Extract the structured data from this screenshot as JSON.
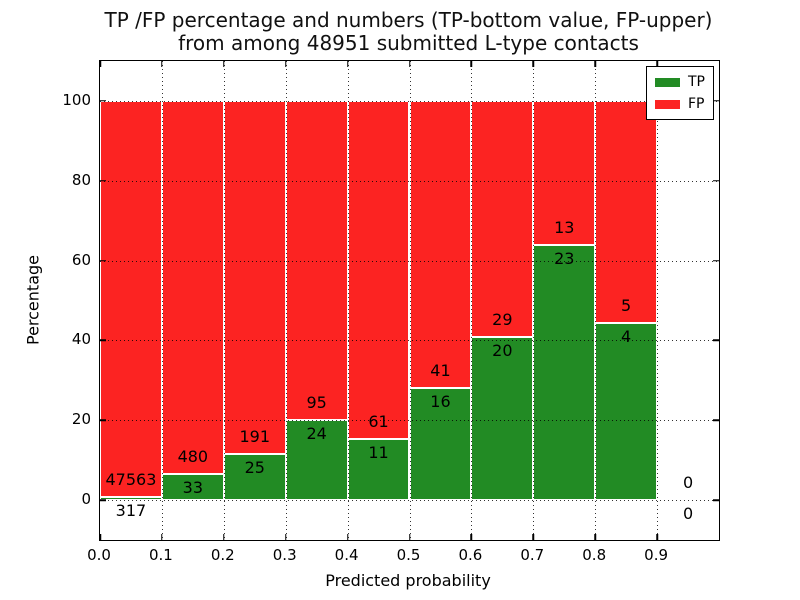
{
  "chart_data": {
    "type": "bar",
    "stacked": true,
    "title_line1": "TP /FP percentage and numbers (TP-bottom value, FP-upper)",
    "title_line2": "from among 48951 submitted L-type contacts",
    "xlabel": "Predicted probability",
    "ylabel": "Percentage",
    "xlim": [
      0.0,
      1.0
    ],
    "ylim": [
      -10,
      110
    ],
    "grid": true,
    "legend_position": "upper right",
    "total_contacts": 48951,
    "series": [
      {
        "name": "TP",
        "color": "#228b24"
      },
      {
        "name": "FP",
        "color": "#fc2322"
      }
    ],
    "yticks": [
      0,
      20,
      40,
      60,
      80,
      100
    ],
    "xticks": [
      {
        "value": 0.0,
        "label": "0.0"
      },
      {
        "value": 0.1,
        "label": "0.1"
      },
      {
        "value": 0.2,
        "label": "0.2"
      },
      {
        "value": 0.3,
        "label": "0.3"
      },
      {
        "value": 0.4,
        "label": "0.4"
      },
      {
        "value": 0.5,
        "label": "0.5"
      },
      {
        "value": 0.6,
        "label": "0.6"
      },
      {
        "value": 0.7,
        "label": "0.7"
      },
      {
        "value": 0.8,
        "label": "0.8"
      },
      {
        "value": 0.9,
        "label": "0.9"
      }
    ],
    "bins": [
      {
        "x0": 0.0,
        "x1": 0.1,
        "tp": 317,
        "fp": 47563,
        "tp_pct": 0.66,
        "fp_pct": 99.34
      },
      {
        "x0": 0.1,
        "x1": 0.2,
        "tp": 33,
        "fp": 480,
        "tp_pct": 6.43,
        "fp_pct": 93.57
      },
      {
        "x0": 0.2,
        "x1": 0.3,
        "tp": 25,
        "fp": 191,
        "tp_pct": 11.57,
        "fp_pct": 88.43
      },
      {
        "x0": 0.3,
        "x1": 0.4,
        "tp": 24,
        "fp": 95,
        "tp_pct": 20.17,
        "fp_pct": 79.83
      },
      {
        "x0": 0.4,
        "x1": 0.5,
        "tp": 11,
        "fp": 61,
        "tp_pct": 15.28,
        "fp_pct": 84.72
      },
      {
        "x0": 0.5,
        "x1": 0.6,
        "tp": 16,
        "fp": 41,
        "tp_pct": 28.07,
        "fp_pct": 71.93
      },
      {
        "x0": 0.6,
        "x1": 0.7,
        "tp": 20,
        "fp": 29,
        "tp_pct": 40.82,
        "fp_pct": 59.18
      },
      {
        "x0": 0.7,
        "x1": 0.8,
        "tp": 23,
        "fp": 13,
        "tp_pct": 63.89,
        "fp_pct": 36.11
      },
      {
        "x0": 0.8,
        "x1": 0.9,
        "tp": 4,
        "fp": 5,
        "tp_pct": 44.44,
        "fp_pct": 55.56
      },
      {
        "x0": 0.9,
        "x1": 1.0,
        "tp": 0,
        "fp": 0,
        "tp_pct": 0,
        "fp_pct": 0
      }
    ]
  }
}
